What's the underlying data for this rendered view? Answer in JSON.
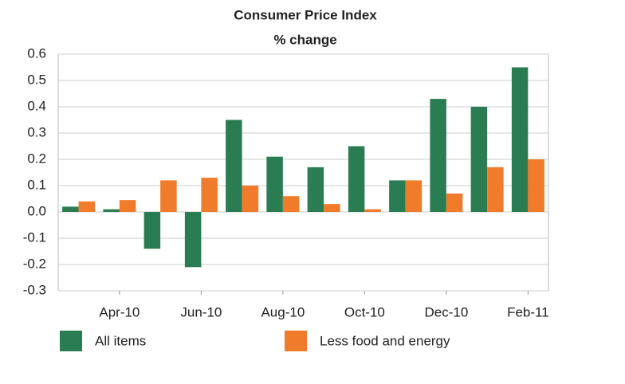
{
  "chart_data": {
    "type": "bar",
    "title": "Consumer Price Index",
    "subtitle": "% change",
    "categories": [
      null,
      "Apr-10",
      null,
      "Jun-10",
      null,
      "Aug-10",
      null,
      "Oct-10",
      null,
      "Dec-10",
      null,
      "Feb-11"
    ],
    "series": [
      {
        "name": "All items",
        "color": "#2a7d52",
        "values": [
          0.02,
          0.01,
          -0.14,
          -0.21,
          0.35,
          0.21,
          0.17,
          0.25,
          0.12,
          0.43,
          0.4,
          0.55
        ]
      },
      {
        "name": "Less food and energy",
        "color": "#f07b2a",
        "values": [
          0.04,
          0.045,
          0.12,
          0.13,
          0.1,
          0.06,
          0.03,
          0.01,
          0.12,
          0.07,
          0.17,
          0.2
        ]
      }
    ],
    "ylim": [
      -0.3,
      0.6
    ],
    "yticks": [
      -0.3,
      -0.2,
      -0.1,
      {
        "value": 0,
        "label": "0.0"
      },
      0.1,
      0.2,
      0.3,
      0.4,
      0.5,
      0.6
    ],
    "grid": true,
    "legend": "bottom"
  }
}
